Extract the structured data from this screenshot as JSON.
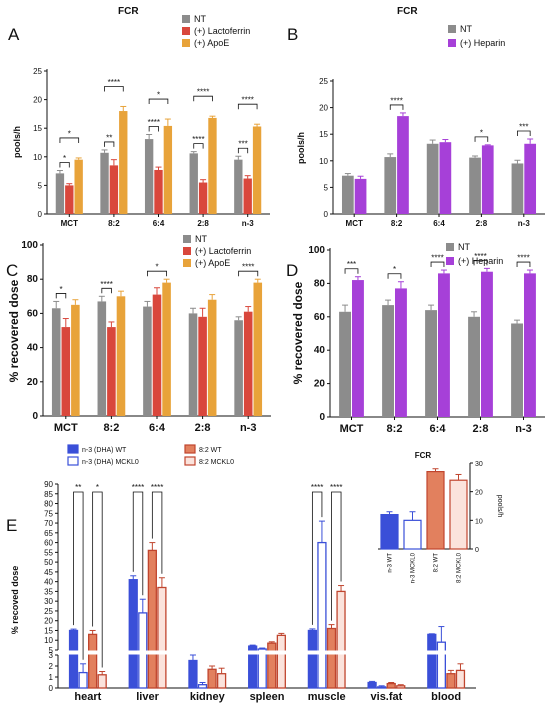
{
  "chart_data": [
    {
      "id": "A",
      "type": "bar",
      "title": "FCR",
      "ylabel": "pools/h",
      "ylim": [
        0,
        25
      ],
      "yticks": [
        0,
        5,
        10,
        15,
        20,
        25
      ],
      "categories": [
        "MCT",
        "8:2",
        "6:4",
        "2:8",
        "n-3"
      ],
      "series": [
        {
          "name": "NT",
          "color": "#8c8c8c",
          "values": [
            7.1,
            10.7,
            13.1,
            10.6,
            9.5
          ],
          "errors": [
            0.5,
            0.5,
            0.8,
            0.3,
            0.6
          ]
        },
        {
          "name": "(+) Lactoferrin",
          "color": "#d9473c",
          "values": [
            5.0,
            8.5,
            7.7,
            5.5,
            6.2
          ],
          "errors": [
            0.3,
            1.0,
            0.5,
            0.5,
            0.5
          ]
        },
        {
          "name": "(+) ApoE",
          "color": "#e8a33a",
          "values": [
            9.5,
            18.0,
            15.4,
            16.8,
            15.3
          ],
          "errors": [
            0.3,
            0.8,
            1.2,
            0.3,
            0.4
          ]
        }
      ],
      "significance": [
        {
          "cat": 0,
          "from": 0,
          "to": 1,
          "label": "*"
        },
        {
          "cat": 0,
          "from": 0,
          "to": 2,
          "label": "*"
        },
        {
          "cat": 1,
          "from": 0,
          "to": 1,
          "label": "**"
        },
        {
          "cat": 1,
          "from": 0,
          "to": 2,
          "label": "****"
        },
        {
          "cat": 2,
          "from": 0,
          "to": 1,
          "label": "****"
        },
        {
          "cat": 2,
          "from": 0,
          "to": 2,
          "label": "*"
        },
        {
          "cat": 3,
          "from": 0,
          "to": 1,
          "label": "****"
        },
        {
          "cat": 3,
          "from": 0,
          "to": 2,
          "label": "****"
        },
        {
          "cat": 4,
          "from": 0,
          "to": 1,
          "label": "***"
        },
        {
          "cat": 4,
          "from": 0,
          "to": 2,
          "label": "****"
        }
      ]
    },
    {
      "id": "B",
      "type": "bar",
      "title": "FCR",
      "ylabel": "pools/h",
      "ylim": [
        0,
        25
      ],
      "yticks": [
        0,
        5,
        10,
        15,
        20,
        25
      ],
      "categories": [
        "MCT",
        "8:2",
        "6:4",
        "2:8",
        "n-3"
      ],
      "series": [
        {
          "name": "NT",
          "color": "#8c8c8c",
          "values": [
            7.2,
            10.7,
            13.2,
            10.6,
            9.5
          ],
          "errors": [
            0.4,
            0.6,
            0.7,
            0.3,
            0.6
          ]
        },
        {
          "name": "(+) Heparin",
          "color": "#a640d8",
          "values": [
            6.6,
            18.4,
            13.5,
            12.9,
            13.2
          ],
          "errors": [
            0.5,
            0.6,
            0.5,
            0.1,
            0.9
          ]
        }
      ],
      "significance": [
        {
          "cat": 1,
          "from": 0,
          "to": 1,
          "label": "****"
        },
        {
          "cat": 3,
          "from": 0,
          "to": 1,
          "label": "*"
        },
        {
          "cat": 4,
          "from": 0,
          "to": 1,
          "label": "***"
        }
      ]
    },
    {
      "id": "C",
      "type": "bar",
      "title": "",
      "ylabel": "% recovered dose",
      "ylim": [
        0,
        100
      ],
      "yticks": [
        0,
        20,
        40,
        60,
        80,
        100
      ],
      "categories": [
        "MCT",
        "8:2",
        "6:4",
        "2:8",
        "n-3"
      ],
      "series": [
        {
          "name": "NT",
          "color": "#8c8c8c",
          "values": [
            63,
            67,
            64,
            60,
            56
          ],
          "errors": [
            4,
            3,
            3,
            3,
            2
          ]
        },
        {
          "name": "(+) Lactoferrin",
          "color": "#d9473c",
          "values": [
            52,
            52,
            71,
            58,
            61
          ],
          "errors": [
            5,
            3,
            4,
            5,
            3
          ]
        },
        {
          "name": "(+) ApoE",
          "color": "#e8a33a",
          "values": [
            65,
            70,
            78,
            68,
            78
          ],
          "errors": [
            3,
            3,
            2,
            3,
            2
          ]
        }
      ],
      "significance": [
        {
          "cat": 0,
          "from": 0,
          "to": 1,
          "label": "*"
        },
        {
          "cat": 1,
          "from": 0,
          "to": 1,
          "label": "****"
        },
        {
          "cat": 2,
          "from": 0,
          "to": 2,
          "label": "*"
        },
        {
          "cat": 4,
          "from": 0,
          "to": 2,
          "label": "****"
        }
      ]
    },
    {
      "id": "D",
      "type": "bar",
      "title": "",
      "ylabel": "% recovered dose",
      "ylim": [
        0,
        100
      ],
      "yticks": [
        0,
        20,
        40,
        60,
        80,
        100
      ],
      "categories": [
        "MCT",
        "8:2",
        "6:4",
        "2:8",
        "n-3"
      ],
      "series": [
        {
          "name": "NT",
          "color": "#8c8c8c",
          "values": [
            63,
            67,
            64,
            60,
            56
          ],
          "errors": [
            4,
            3,
            3,
            3,
            2
          ]
        },
        {
          "name": "(+) Heparin",
          "color": "#a640d8",
          "values": [
            82,
            77,
            86,
            87,
            86
          ],
          "errors": [
            2,
            4,
            2,
            2,
            2
          ]
        }
      ],
      "significance": [
        {
          "cat": 0,
          "from": 0,
          "to": 1,
          "label": "***"
        },
        {
          "cat": 1,
          "from": 0,
          "to": 1,
          "label": "*"
        },
        {
          "cat": 2,
          "from": 0,
          "to": 1,
          "label": "****"
        },
        {
          "cat": 3,
          "from": 0,
          "to": 1,
          "label": "****"
        },
        {
          "cat": 4,
          "from": 0,
          "to": 1,
          "label": "****"
        }
      ]
    },
    {
      "id": "E",
      "type": "bar",
      "title": "",
      "ylabel": "% recoved dose",
      "ylim": [
        0,
        90
      ],
      "axis_break": [
        3,
        5
      ],
      "yticks": [
        0,
        1,
        2,
        3,
        5,
        10,
        15,
        20,
        25,
        30,
        35,
        40,
        45,
        50,
        55,
        60,
        65,
        70,
        75,
        80,
        85,
        90
      ],
      "categories": [
        "heart",
        "liver",
        "kidney",
        "spleen",
        "muscle",
        "vis.fat",
        "blood"
      ],
      "series": [
        {
          "name": "n-3 (DHA) WT",
          "color": "#3a4fd8",
          "fill": "#3a4fd8",
          "values": [
            15,
            41,
            2.5,
            7,
            15,
            0.5,
            13
          ],
          "errors": [
            0.7,
            2,
            0.5,
            0.5,
            0.8,
            0.1,
            0.3
          ]
        },
        {
          "name": "n-3 (DHA) MCKL0",
          "color": "#3a4fd8",
          "fill": "#ffffff",
          "values": [
            1.4,
            24,
            0.3,
            5.5,
            60,
            0.1,
            9
          ],
          "errors": [
            0.8,
            7,
            0.2,
            0.5,
            11,
            0.1,
            8
          ]
        },
        {
          "name": "8:2 WT",
          "color": "#c0452e",
          "fill": "#e2805e",
          "values": [
            13,
            56,
            1.7,
            8.5,
            16,
            0.4,
            1.3
          ],
          "errors": [
            2,
            4,
            0.3,
            0.7,
            2,
            0.1,
            0.3
          ]
        },
        {
          "name": "8:2 MCKL0",
          "color": "#c0452e",
          "fill": "#fbe3dc",
          "values": [
            1.2,
            37,
            1.3,
            12.5,
            35,
            0.2,
            1.6
          ],
          "errors": [
            0.3,
            5,
            0.5,
            1,
            3,
            0.1,
            0.6
          ]
        }
      ],
      "significance": [
        {
          "cat": 0,
          "from": 0,
          "to": 1,
          "label": "**"
        },
        {
          "cat": 0,
          "from": 2,
          "to": 3,
          "label": "*"
        },
        {
          "cat": 1,
          "from": 0,
          "to": 1,
          "label": "****"
        },
        {
          "cat": 1,
          "from": 2,
          "to": 3,
          "label": "****"
        },
        {
          "cat": 4,
          "from": 0,
          "to": 1,
          "label": "****"
        },
        {
          "cat": 4,
          "from": 2,
          "to": 3,
          "label": "****"
        }
      ],
      "inset": {
        "title": "FCR",
        "ylabel": "pools/h",
        "ylim": [
          0,
          30
        ],
        "yticks": [
          0,
          10,
          20,
          30
        ],
        "categories": [
          "n-3 WT",
          "n-3 MCKL0",
          "8:2 WT",
          "8:2 MCKL0"
        ],
        "values": [
          12,
          10,
          27,
          24
        ],
        "errors": [
          1,
          3,
          1,
          2
        ]
      }
    }
  ]
}
